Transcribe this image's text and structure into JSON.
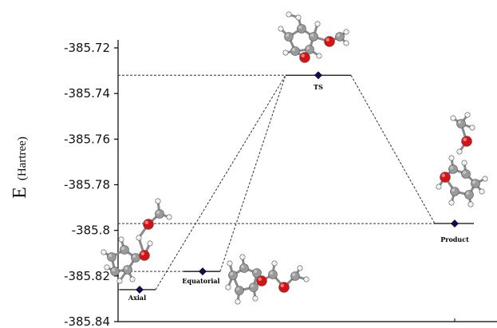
{
  "chart_data": {
    "type": "scatter",
    "title": "",
    "xlabel": "",
    "ylabel_main": "E",
    "ylabel_unit": "(Hartree)",
    "ylim": [
      -385.84,
      -385.72
    ],
    "yticks": [
      "-385.72",
      "-385.74",
      "-385.76",
      "-385.78",
      "-385.8",
      "-385.82",
      "-385.84"
    ],
    "ytick_values": [
      -385.72,
      -385.74,
      -385.76,
      -385.78,
      -385.8,
      -385.82,
      -385.84
    ],
    "grid": false,
    "points": [
      {
        "label": "Axial",
        "energy": -385.826
      },
      {
        "label": "Equatorial",
        "energy": -385.818
      },
      {
        "label": "TS",
        "energy": -385.732
      },
      {
        "label": "Product",
        "energy": -385.797
      }
    ],
    "connections": [
      [
        "Axial",
        "TS"
      ],
      [
        "Equatorial",
        "TS"
      ],
      [
        "TS",
        "Product"
      ]
    ],
    "colors": {
      "marker": "#0d0d5e",
      "oxygen_atom": "#d41414",
      "carbon_atom": "#9a9a9a",
      "hydrogen_atom": "#f2f2f2"
    }
  }
}
